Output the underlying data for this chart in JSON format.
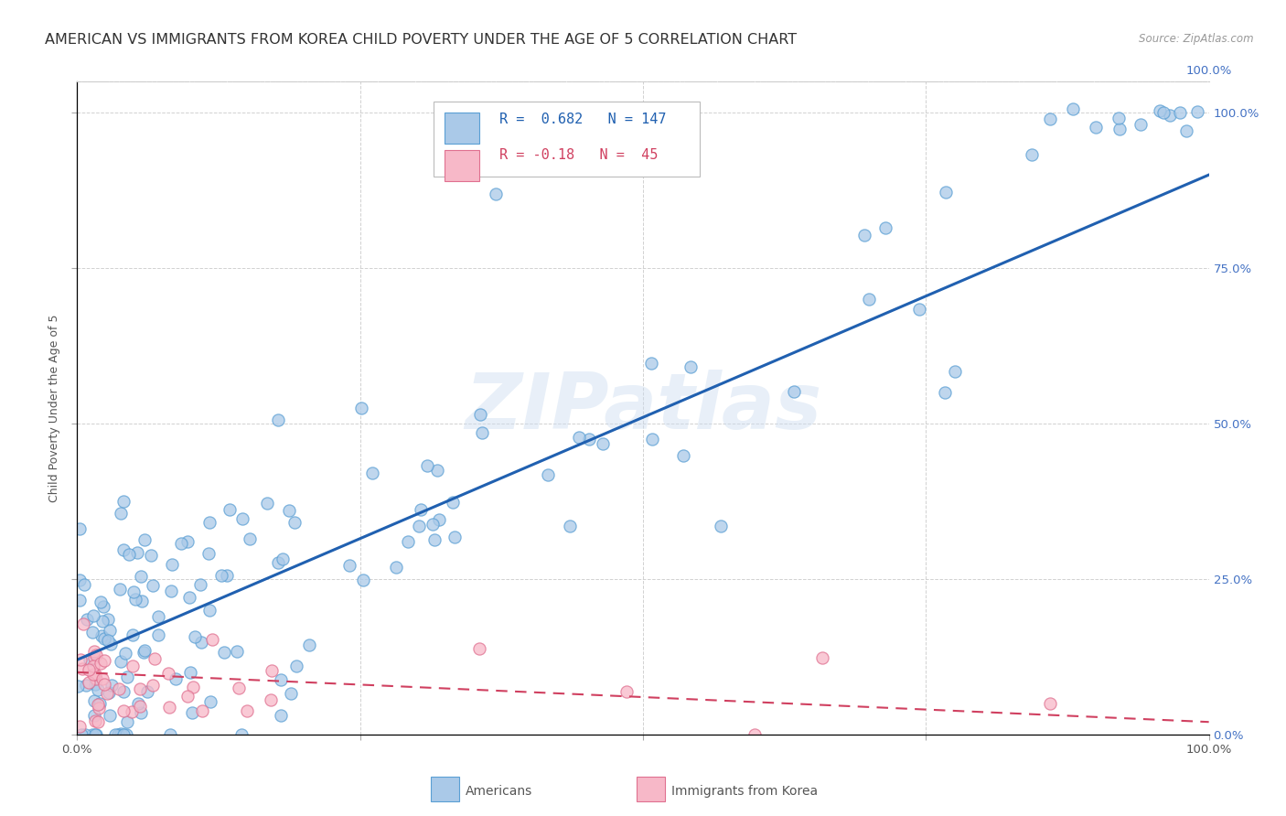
{
  "title": "AMERICAN VS IMMIGRANTS FROM KOREA CHILD POVERTY UNDER THE AGE OF 5 CORRELATION CHART",
  "source": "Source: ZipAtlas.com",
  "ylabel": "Child Poverty Under the Age of 5",
  "americans_R": 0.682,
  "americans_N": 147,
  "korea_R": -0.18,
  "korea_N": 45,
  "watermark": "ZIPatlas",
  "americans_color": "#aac9e8",
  "americans_edge_color": "#5a9fd4",
  "americans_line_color": "#2060b0",
  "korea_color": "#f7b8c8",
  "korea_edge_color": "#e07090",
  "korea_line_color": "#d04060",
  "background_color": "#ffffff",
  "grid_color": "#cccccc",
  "right_tick_color": "#4472c4",
  "title_fontsize": 11.5,
  "axis_label_fontsize": 9,
  "tick_fontsize": 9.5,
  "legend_fontsize": 11
}
